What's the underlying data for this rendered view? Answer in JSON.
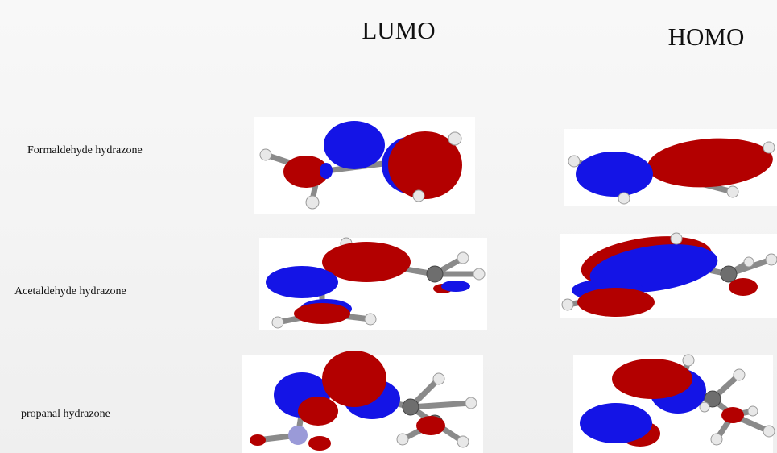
{
  "columns": [
    "LUMO",
    "HOMO"
  ],
  "rows": [
    {
      "label": "Formaldehyde hydrazone"
    },
    {
      "label": "Acetaldehyde hydrazone"
    },
    {
      "label": "propanal hydrazone"
    }
  ]
}
